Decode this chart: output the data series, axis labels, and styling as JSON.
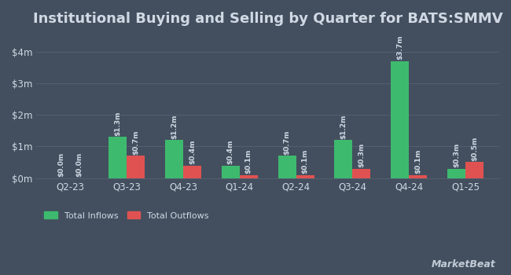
{
  "title": "Institutional Buying and Selling by Quarter for BATS:SMMV",
  "quarters": [
    "Q2-23",
    "Q3-23",
    "Q4-23",
    "Q1-24",
    "Q2-24",
    "Q3-24",
    "Q4-24",
    "Q1-25"
  ],
  "inflows": [
    0.0,
    1.3,
    1.2,
    0.4,
    0.7,
    1.2,
    3.7,
    0.3
  ],
  "outflows": [
    0.0,
    0.7,
    0.4,
    0.1,
    0.1,
    0.3,
    0.1,
    0.5
  ],
  "inflow_labels": [
    "$0.0m",
    "$1.3m",
    "$1.2m",
    "$0.4m",
    "$0.7m",
    "$1.2m",
    "$3.7m",
    "$0.3m"
  ],
  "outflow_labels": [
    "$0.0m",
    "$0.7m",
    "$0.4m",
    "$0.1m",
    "$0.1m",
    "$0.3m",
    "$0.1m",
    "$0.5m"
  ],
  "inflow_color": "#3dba6e",
  "outflow_color": "#e05252",
  "background_color": "#434f5e",
  "grid_color": "#525f6e",
  "text_color": "#d0d8e4",
  "ylim": [
    0,
    4.5
  ],
  "yticks": [
    0,
    1,
    2,
    3,
    4
  ],
  "ytick_labels": [
    "$0m",
    "$1m",
    "$2m",
    "$3m",
    "$4m"
  ],
  "bar_width": 0.32,
  "legend_inflow": "Total Inflows",
  "legend_outflow": "Total Outflows",
  "title_fontsize": 13,
  "label_fontsize": 6.5,
  "axis_fontsize": 8.5,
  "watermark": "MarketBeat"
}
